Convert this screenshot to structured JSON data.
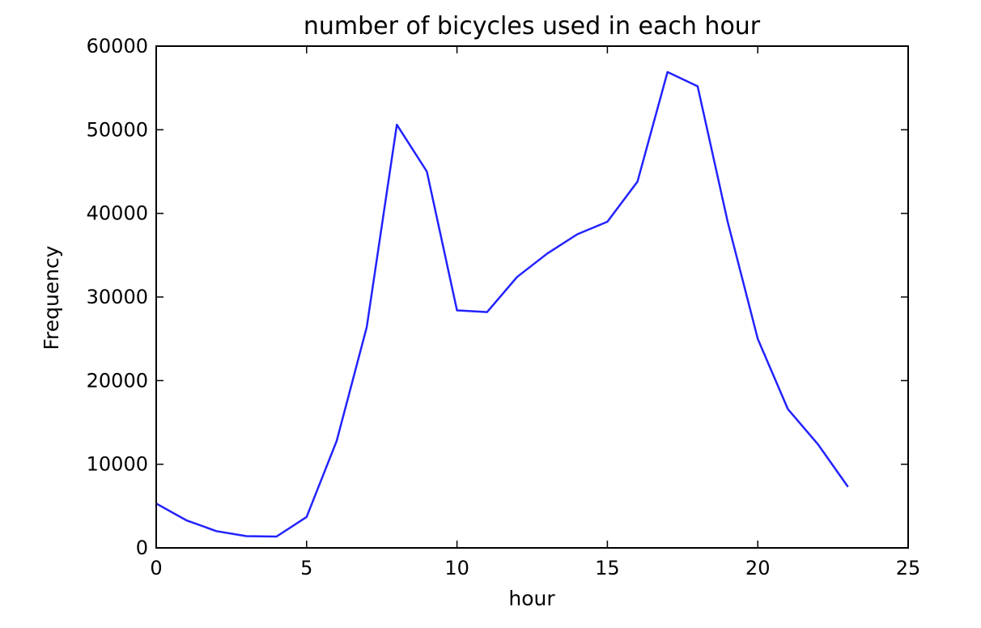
{
  "chart_data": {
    "type": "line",
    "title": "number of bicycles used in each hour",
    "xlabel": "hour",
    "ylabel": "Frequency",
    "xlim": [
      0,
      25
    ],
    "ylim": [
      0,
      60000
    ],
    "xticks": [
      0,
      5,
      10,
      15,
      20,
      25
    ],
    "yticks": [
      0,
      10000,
      20000,
      30000,
      40000,
      50000,
      60000
    ],
    "xtick_labels": [
      "0",
      "5",
      "10",
      "15",
      "20",
      "25"
    ],
    "ytick_labels": [
      "0",
      "10000",
      "20000",
      "30000",
      "40000",
      "50000",
      "60000"
    ],
    "grid": false,
    "series": [
      {
        "color": "#2222ff",
        "x": [
          0,
          1,
          2,
          3,
          4,
          5,
          6,
          7,
          8,
          9,
          10,
          11,
          12,
          13,
          14,
          15,
          16,
          17,
          18,
          19,
          20,
          21,
          22,
          23
        ],
        "y": [
          5300,
          3300,
          2000,
          1400,
          1350,
          3700,
          12800,
          26400,
          50600,
          45000,
          28400,
          28200,
          32400,
          35200,
          37500,
          39000,
          43800,
          56900,
          55200,
          39000,
          25000,
          16600,
          12400,
          7300
        ]
      }
    ]
  }
}
